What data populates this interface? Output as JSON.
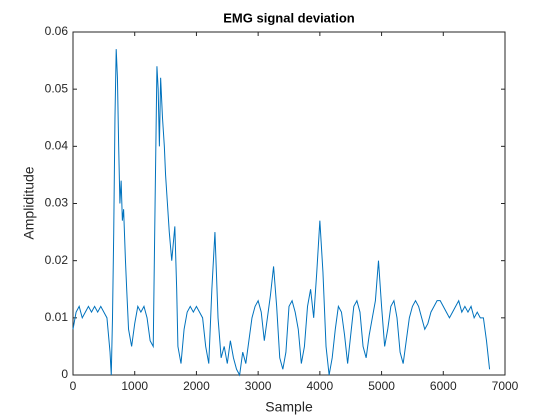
{
  "chart_data": {
    "type": "line",
    "title": "EMG signal deviation",
    "xlabel": "Sample",
    "ylabel": "Ampliditude",
    "x": [
      0,
      50,
      100,
      150,
      200,
      250,
      300,
      350,
      400,
      450,
      500,
      550,
      600,
      620,
      640,
      660,
      680,
      700,
      720,
      740,
      760,
      780,
      800,
      820,
      850,
      870,
      900,
      950,
      1000,
      1050,
      1100,
      1150,
      1200,
      1250,
      1300,
      1330,
      1360,
      1380,
      1400,
      1420,
      1450,
      1480,
      1500,
      1530,
      1560,
      1600,
      1650,
      1680,
      1700,
      1750,
      1800,
      1850,
      1900,
      1950,
      2000,
      2050,
      2100,
      2150,
      2200,
      2250,
      2300,
      2350,
      2400,
      2450,
      2500,
      2550,
      2600,
      2650,
      2700,
      2750,
      2800,
      2850,
      2900,
      2950,
      3000,
      3050,
      3100,
      3150,
      3200,
      3250,
      3300,
      3350,
      3400,
      3450,
      3500,
      3550,
      3600,
      3650,
      3700,
      3750,
      3800,
      3850,
      3900,
      3950,
      4000,
      4050,
      4100,
      4150,
      4200,
      4250,
      4300,
      4350,
      4400,
      4450,
      4500,
      4550,
      4600,
      4650,
      4700,
      4750,
      4800,
      4850,
      4900,
      4950,
      5000,
      5050,
      5100,
      5150,
      5200,
      5250,
      5300,
      5350,
      5400,
      5450,
      5500,
      5550,
      5600,
      5650,
      5700,
      5750,
      5800,
      5850,
      5900,
      5950,
      6000,
      6050,
      6100,
      6150,
      6200,
      6250,
      6300,
      6350,
      6400,
      6450,
      6500,
      6550,
      6600,
      6650,
      6700,
      6750
    ],
    "series": [
      {
        "name": "EMG",
        "color": "#0072bd",
        "values": [
          0.008,
          0.011,
          0.012,
          0.01,
          0.011,
          0.012,
          0.011,
          0.012,
          0.011,
          0.012,
          0.011,
          0.01,
          0.004,
          0.0,
          0.01,
          0.025,
          0.045,
          0.057,
          0.052,
          0.04,
          0.03,
          0.034,
          0.027,
          0.029,
          0.02,
          0.015,
          0.008,
          0.005,
          0.009,
          0.012,
          0.011,
          0.012,
          0.01,
          0.006,
          0.005,
          0.03,
          0.054,
          0.05,
          0.04,
          0.052,
          0.045,
          0.04,
          0.035,
          0.03,
          0.025,
          0.02,
          0.026,
          0.015,
          0.005,
          0.002,
          0.008,
          0.011,
          0.012,
          0.011,
          0.012,
          0.011,
          0.01,
          0.005,
          0.002,
          0.015,
          0.025,
          0.01,
          0.003,
          0.005,
          0.002,
          0.006,
          0.003,
          0.001,
          0.0,
          0.004,
          0.002,
          0.006,
          0.01,
          0.012,
          0.013,
          0.011,
          0.006,
          0.01,
          0.014,
          0.019,
          0.012,
          0.003,
          0.001,
          0.004,
          0.012,
          0.013,
          0.011,
          0.008,
          0.002,
          0.005,
          0.012,
          0.015,
          0.01,
          0.018,
          0.027,
          0.018,
          0.005,
          0.0,
          0.003,
          0.008,
          0.012,
          0.011,
          0.007,
          0.002,
          0.007,
          0.012,
          0.013,
          0.011,
          0.005,
          0.003,
          0.007,
          0.01,
          0.013,
          0.02,
          0.012,
          0.005,
          0.008,
          0.012,
          0.013,
          0.01,
          0.004,
          0.002,
          0.006,
          0.01,
          0.012,
          0.013,
          0.012,
          0.01,
          0.008,
          0.009,
          0.011,
          0.012,
          0.013,
          0.013,
          0.012,
          0.011,
          0.01,
          0.011,
          0.012,
          0.013,
          0.011,
          0.012,
          0.011,
          0.012,
          0.01,
          0.011,
          0.01,
          0.01,
          0.006,
          0.001
        ]
      }
    ],
    "xlim": [
      0,
      7000
    ],
    "xticks": [
      0,
      1000,
      2000,
      3000,
      4000,
      5000,
      6000,
      7000
    ],
    "ylim": [
      0,
      0.06
    ],
    "yticks": [
      0,
      0.01,
      0.02,
      0.03,
      0.04,
      0.05,
      0.06
    ],
    "grid": false
  }
}
